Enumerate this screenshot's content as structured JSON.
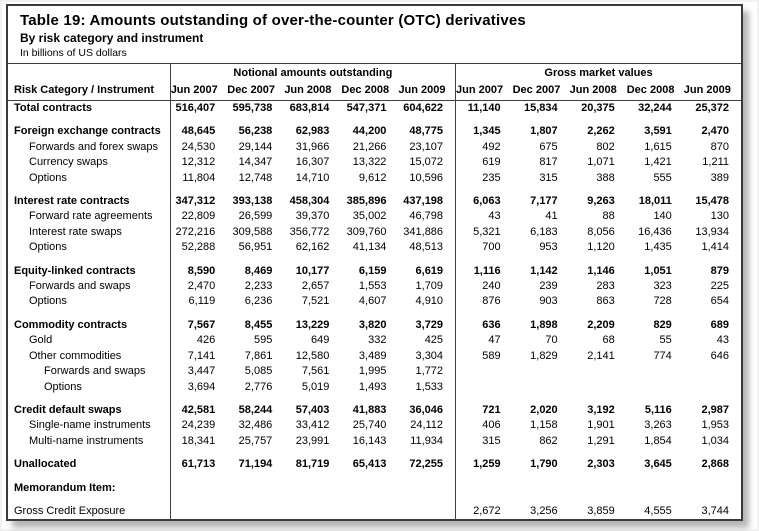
{
  "title": "Table 19: Amounts outstanding of over-the-counter (OTC) derivatives",
  "subtitle": "By risk category and instrument",
  "unit_note": "In billions of US dollars",
  "table": {
    "row_header": "Risk Category / Instrument",
    "groups": [
      {
        "label": "Notional amounts outstanding",
        "columns": [
          "Jun 2007",
          "Dec 2007",
          "Jun 2008",
          "Dec 2008",
          "Jun 2009"
        ]
      },
      {
        "label": "Gross market values",
        "columns": [
          "Jun 2007",
          "Dec 2007",
          "Jun 2008",
          "Dec 2008",
          "Jun 2009"
        ]
      }
    ],
    "rows": [
      {
        "label": "Total contracts",
        "bold": true,
        "indent": 0,
        "gap_after": true,
        "notional": [
          "516,407",
          "595,738",
          "683,814",
          "547,371",
          "604,622"
        ],
        "gross": [
          "11,140",
          "15,834",
          "20,375",
          "32,244",
          "25,372"
        ]
      },
      {
        "label": "Foreign exchange contracts",
        "bold": true,
        "indent": 0,
        "notional": [
          "48,645",
          "56,238",
          "62,983",
          "44,200",
          "48,775"
        ],
        "gross": [
          "1,345",
          "1,807",
          "2,262",
          "3,591",
          "2,470"
        ]
      },
      {
        "label": "Forwards and forex swaps",
        "bold": false,
        "indent": 1,
        "notional": [
          "24,530",
          "29,144",
          "31,966",
          "21,266",
          "23,107"
        ],
        "gross": [
          "492",
          "675",
          "802",
          "1,615",
          "870"
        ]
      },
      {
        "label": "Currency swaps",
        "bold": false,
        "indent": 1,
        "notional": [
          "12,312",
          "14,347",
          "16,307",
          "13,322",
          "15,072"
        ],
        "gross": [
          "619",
          "817",
          "1,071",
          "1,421",
          "1,211"
        ]
      },
      {
        "label": "Options",
        "bold": false,
        "indent": 1,
        "gap_after": true,
        "notional": [
          "11,804",
          "12,748",
          "14,710",
          "9,612",
          "10,596"
        ],
        "gross": [
          "235",
          "315",
          "388",
          "555",
          "389"
        ]
      },
      {
        "label": "Interest rate contracts",
        "bold": true,
        "indent": 0,
        "notional": [
          "347,312",
          "393,138",
          "458,304",
          "385,896",
          "437,198"
        ],
        "gross": [
          "6,063",
          "7,177",
          "9,263",
          "18,011",
          "15,478"
        ]
      },
      {
        "label": "Forward rate agreements",
        "bold": false,
        "indent": 1,
        "notional": [
          "22,809",
          "26,599",
          "39,370",
          "35,002",
          "46,798"
        ],
        "gross": [
          "43",
          "41",
          "88",
          "140",
          "130"
        ]
      },
      {
        "label": "Interest rate swaps",
        "bold": false,
        "indent": 1,
        "notional": [
          "272,216",
          "309,588",
          "356,772",
          "309,760",
          "341,886"
        ],
        "gross": [
          "5,321",
          "6,183",
          "8,056",
          "16,436",
          "13,934"
        ]
      },
      {
        "label": "Options",
        "bold": false,
        "indent": 1,
        "gap_after": true,
        "notional": [
          "52,288",
          "56,951",
          "62,162",
          "41,134",
          "48,513"
        ],
        "gross": [
          "700",
          "953",
          "1,120",
          "1,435",
          "1,414"
        ]
      },
      {
        "label": "Equity-linked contracts",
        "bold": true,
        "indent": 0,
        "notional": [
          "8,590",
          "8,469",
          "10,177",
          "6,159",
          "6,619"
        ],
        "gross": [
          "1,116",
          "1,142",
          "1,146",
          "1,051",
          "879"
        ]
      },
      {
        "label": "Forwards and swaps",
        "bold": false,
        "indent": 1,
        "notional": [
          "2,470",
          "2,233",
          "2,657",
          "1,553",
          "1,709"
        ],
        "gross": [
          "240",
          "239",
          "283",
          "323",
          "225"
        ]
      },
      {
        "label": "Options",
        "bold": false,
        "indent": 1,
        "gap_after": true,
        "notional": [
          "6,119",
          "6,236",
          "7,521",
          "4,607",
          "4,910"
        ],
        "gross": [
          "876",
          "903",
          "863",
          "728",
          "654"
        ]
      },
      {
        "label": "Commodity contracts",
        "bold": true,
        "indent": 0,
        "notional": [
          "7,567",
          "8,455",
          "13,229",
          "3,820",
          "3,729"
        ],
        "gross": [
          "636",
          "1,898",
          "2,209",
          "829",
          "689"
        ]
      },
      {
        "label": "Gold",
        "bold": false,
        "indent": 1,
        "notional": [
          "426",
          "595",
          "649",
          "332",
          "425"
        ],
        "gross": [
          "47",
          "70",
          "68",
          "55",
          "43"
        ]
      },
      {
        "label": "Other commodities",
        "bold": false,
        "indent": 1,
        "notional": [
          "7,141",
          "7,861",
          "12,580",
          "3,489",
          "3,304"
        ],
        "gross": [
          "589",
          "1,829",
          "2,141",
          "774",
          "646"
        ]
      },
      {
        "label": "Forwards and swaps",
        "bold": false,
        "indent": 2,
        "notional": [
          "3,447",
          "5,085",
          "7,561",
          "1,995",
          "1,772"
        ],
        "gross": [
          "",
          "",
          "",
          "",
          ""
        ]
      },
      {
        "label": "Options",
        "bold": false,
        "indent": 2,
        "gap_after": true,
        "notional": [
          "3,694",
          "2,776",
          "5,019",
          "1,493",
          "1,533"
        ],
        "gross": [
          "",
          "",
          "",
          "",
          ""
        ]
      },
      {
        "label": "Credit default swaps",
        "bold": true,
        "indent": 0,
        "notional": [
          "42,581",
          "58,244",
          "57,403",
          "41,883",
          "36,046"
        ],
        "gross": [
          "721",
          "2,020",
          "3,192",
          "5,116",
          "2,987"
        ]
      },
      {
        "label": "Single-name instruments",
        "bold": false,
        "indent": 1,
        "notional": [
          "24,239",
          "32,486",
          "33,412",
          "25,740",
          "24,112"
        ],
        "gross": [
          "406",
          "1,158",
          "1,901",
          "3,263",
          "1,953"
        ]
      },
      {
        "label": "Multi-name instruments",
        "bold": false,
        "indent": 1,
        "gap_after": true,
        "notional": [
          "18,341",
          "25,757",
          "23,991",
          "16,143",
          "11,934"
        ],
        "gross": [
          "315",
          "862",
          "1,291",
          "1,854",
          "1,034"
        ]
      },
      {
        "label": "Unallocated",
        "bold": true,
        "indent": 0,
        "gap_after": true,
        "notional": [
          "61,713",
          "71,194",
          "81,719",
          "65,413",
          "72,255"
        ],
        "gross": [
          "1,259",
          "1,790",
          "2,303",
          "3,645",
          "2,868"
        ]
      },
      {
        "label": "Memorandum Item:",
        "bold": true,
        "indent": 0,
        "gap_after": true,
        "notional": [
          "",
          "",
          "",
          "",
          ""
        ],
        "gross": [
          "",
          "",
          "",
          "",
          ""
        ]
      },
      {
        "label": "Gross Credit Exposure",
        "bold": false,
        "indent": 0,
        "notional": [
          "",
          "",
          "",
          "",
          ""
        ],
        "gross": [
          "2,672",
          "3,256",
          "3,859",
          "4,555",
          "3,744"
        ]
      }
    ]
  }
}
